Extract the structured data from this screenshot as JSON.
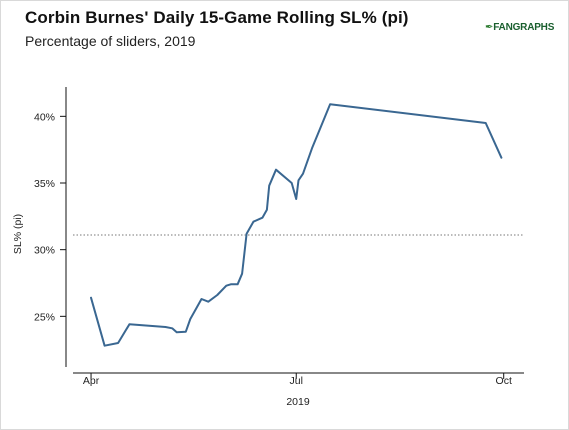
{
  "header": {
    "title": "Corbin Burnes' Daily 15-Game Rolling SL% (pi)",
    "subtitle": "Percentage of sliders, 2019",
    "logo_text": "FANGRAPHS",
    "logo_mark": "✒"
  },
  "chart_data": {
    "type": "line",
    "title": "Corbin Burnes' Daily 15-Game Rolling SL% (pi)",
    "subtitle": "Percentage of sliders, 2019",
    "xlabel": "2019",
    "ylabel": "SL% (pi)",
    "x_tick_labels": [
      "Apr",
      "Jul",
      "Oct"
    ],
    "x_ticks": [
      "2019-04-01",
      "2019-07-01",
      "2019-10-01"
    ],
    "xlim": [
      "2019-03-24",
      "2019-10-10"
    ],
    "y_tick_labels": [
      "25%",
      "30%",
      "35%",
      "40%"
    ],
    "y_ticks": [
      25,
      30,
      35,
      40
    ],
    "ylim": [
      21.2,
      42.2
    ],
    "grid": false,
    "series": [
      {
        "color": "#3a6791",
        "points": [
          [
            "2019-04-01",
            26.4
          ],
          [
            "2019-04-07",
            22.8
          ],
          [
            "2019-04-13",
            23.0
          ],
          [
            "2019-04-18",
            24.4
          ],
          [
            "2019-05-04",
            24.2
          ],
          [
            "2019-05-07",
            24.1
          ],
          [
            "2019-05-09",
            23.8
          ],
          [
            "2019-05-13",
            23.85
          ],
          [
            "2019-05-15",
            24.8
          ],
          [
            "2019-05-17",
            25.4
          ],
          [
            "2019-05-20",
            26.3
          ],
          [
            "2019-05-23",
            26.1
          ],
          [
            "2019-05-27",
            26.6
          ],
          [
            "2019-05-31",
            27.3
          ],
          [
            "2019-06-02",
            27.4
          ],
          [
            "2019-06-05",
            27.4
          ],
          [
            "2019-06-07",
            28.2
          ],
          [
            "2019-06-09",
            31.2
          ],
          [
            "2019-06-12",
            32.1
          ],
          [
            "2019-06-16",
            32.4
          ],
          [
            "2019-06-18",
            33.0
          ],
          [
            "2019-06-19",
            34.8
          ],
          [
            "2019-06-22",
            36.0
          ],
          [
            "2019-06-29",
            35.0
          ],
          [
            "2019-07-01",
            33.8
          ],
          [
            "2019-07-02",
            35.2
          ],
          [
            "2019-07-04",
            35.7
          ],
          [
            "2019-07-08",
            37.6
          ],
          [
            "2019-07-16",
            40.9
          ],
          [
            "2019-09-23",
            39.5
          ],
          [
            "2019-09-30",
            36.9
          ]
        ]
      }
    ],
    "reference_line": {
      "value": 31.1,
      "style": "dotted",
      "color": "#777777"
    }
  }
}
